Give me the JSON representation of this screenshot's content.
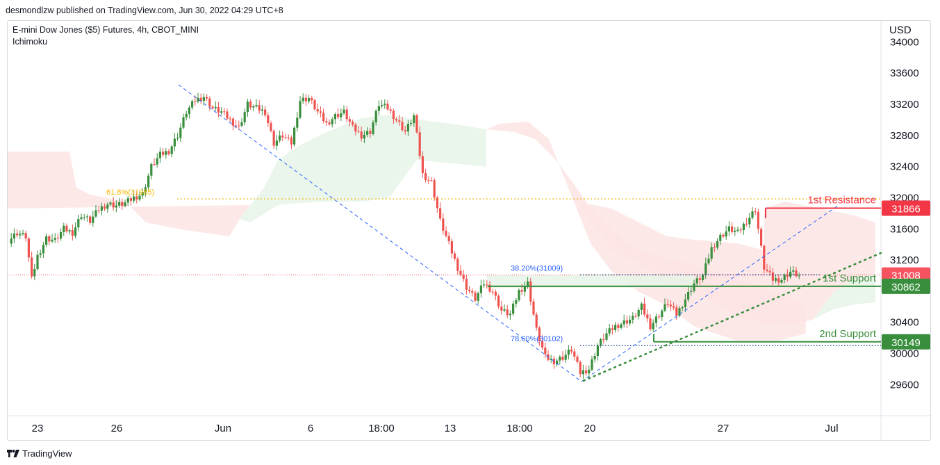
{
  "header": {
    "published": "desmondlzw published on TradingView.com, Jun 30, 2022 04:29 UTC+8"
  },
  "legend": {
    "symbol": "E-mini Dow Jones ($5) Futures, 4h, CBOT_MINI",
    "indicator": "Ichimoku"
  },
  "footer": {
    "brand": "TradingView",
    "logo_icon": "tradingview-logo-icon"
  },
  "colors": {
    "up": "#388e3c",
    "down": "#ef5350",
    "resistance": "#f23645",
    "support": "#388e3c",
    "fib": "#f5b700",
    "trend": "#2962ff",
    "cloud_green": "#e6f4e8",
    "cloud_red": "#fde4e4"
  },
  "chart_data": {
    "type": "candlestick",
    "currency": "USD",
    "y_ticks": [
      34000,
      33600,
      33200,
      32800,
      32400,
      32000,
      31600,
      31200,
      30400,
      30000,
      29600
    ],
    "ylim": [
      29300,
      34200
    ],
    "x_ticks": [
      "23",
      "26",
      "Jun",
      "6",
      "18:00",
      "13",
      "18:00",
      "20",
      "27",
      "Jul"
    ],
    "price_labels": [
      {
        "value": 31866,
        "text": "31866",
        "kind": "resistance"
      },
      {
        "value": 31008,
        "text": "31008",
        "kind": "last"
      },
      {
        "value": 30862,
        "text": "30862",
        "kind": "support"
      },
      {
        "value": 30149,
        "text": "30149",
        "kind": "support"
      }
    ],
    "annotations": [
      {
        "text": "1st Resistance",
        "value": 31866,
        "kind": "resistance"
      },
      {
        "text": "1st Support",
        "value": 30862,
        "kind": "support"
      },
      {
        "text": "2nd Support",
        "value": 30149,
        "kind": "support"
      },
      {
        "text": "61.8%(31985)",
        "value": 31985,
        "kind": "fib-gold"
      },
      {
        "text": "38.20%(31009)",
        "value": 31009,
        "kind": "fib-blue"
      },
      {
        "text": "78.60%(30102)",
        "value": 30102,
        "kind": "fib-blue"
      }
    ],
    "close_path": [
      [
        0,
        31450
      ],
      [
        3,
        31550
      ],
      [
        6,
        31500
      ],
      [
        8,
        30950
      ],
      [
        10,
        31250
      ],
      [
        13,
        31480
      ],
      [
        16,
        31450
      ],
      [
        19,
        31600
      ],
      [
        22,
        31550
      ],
      [
        25,
        31780
      ],
      [
        28,
        31700
      ],
      [
        31,
        31850
      ],
      [
        34,
        31920
      ],
      [
        37,
        31900
      ],
      [
        40,
        31930
      ],
      [
        43,
        32000
      ],
      [
        46,
        32050
      ],
      [
        49,
        32400
      ],
      [
        52,
        32550
      ],
      [
        55,
        32600
      ],
      [
        58,
        32800
      ],
      [
        61,
        33100
      ],
      [
        64,
        33250
      ],
      [
        67,
        33300
      ],
      [
        70,
        33150
      ],
      [
        73,
        33100
      ],
      [
        76,
        33000
      ],
      [
        79,
        32900
      ],
      [
        82,
        33200
      ],
      [
        85,
        33150
      ],
      [
        88,
        33100
      ],
      [
        91,
        32700
      ],
      [
        94,
        32800
      ],
      [
        97,
        32700
      ],
      [
        100,
        33250
      ],
      [
        103,
        33280
      ],
      [
        106,
        33100
      ],
      [
        109,
        32950
      ],
      [
        112,
        33050
      ],
      [
        115,
        33100
      ],
      [
        118,
        32900
      ],
      [
        121,
        32800
      ],
      [
        124,
        32850
      ],
      [
        127,
        33200
      ],
      [
        130,
        33150
      ],
      [
        133,
        33000
      ],
      [
        136,
        32850
      ],
      [
        139,
        33050
      ],
      [
        142,
        32300
      ],
      [
        145,
        32200
      ],
      [
        148,
        31700
      ],
      [
        151,
        31400
      ],
      [
        154,
        31100
      ],
      [
        157,
        30850
      ],
      [
        160,
        30700
      ],
      [
        163,
        30900
      ],
      [
        166,
        30800
      ],
      [
        169,
        30550
      ],
      [
        172,
        30500
      ],
      [
        175,
        30800
      ],
      [
        178,
        30900
      ],
      [
        181,
        30300
      ],
      [
        184,
        29950
      ],
      [
        187,
        29900
      ],
      [
        190,
        29950
      ],
      [
        193,
        30050
      ],
      [
        196,
        29750
      ],
      [
        199,
        29800
      ],
      [
        202,
        30100
      ],
      [
        205,
        30250
      ],
      [
        208,
        30350
      ],
      [
        211,
        30400
      ],
      [
        214,
        30450
      ],
      [
        217,
        30600
      ],
      [
        220,
        30350
      ],
      [
        223,
        30500
      ],
      [
        226,
        30650
      ],
      [
        229,
        30500
      ],
      [
        232,
        30700
      ],
      [
        235,
        30900
      ],
      [
        238,
        31000
      ],
      [
        241,
        31350
      ],
      [
        244,
        31500
      ],
      [
        247,
        31600
      ],
      [
        250,
        31550
      ],
      [
        253,
        31700
      ],
      [
        256,
        31850
      ],
      [
        259,
        31100
      ],
      [
        262,
        30950
      ],
      [
        265,
        30950
      ],
      [
        268,
        31050
      ],
      [
        271,
        31000
      ]
    ]
  }
}
